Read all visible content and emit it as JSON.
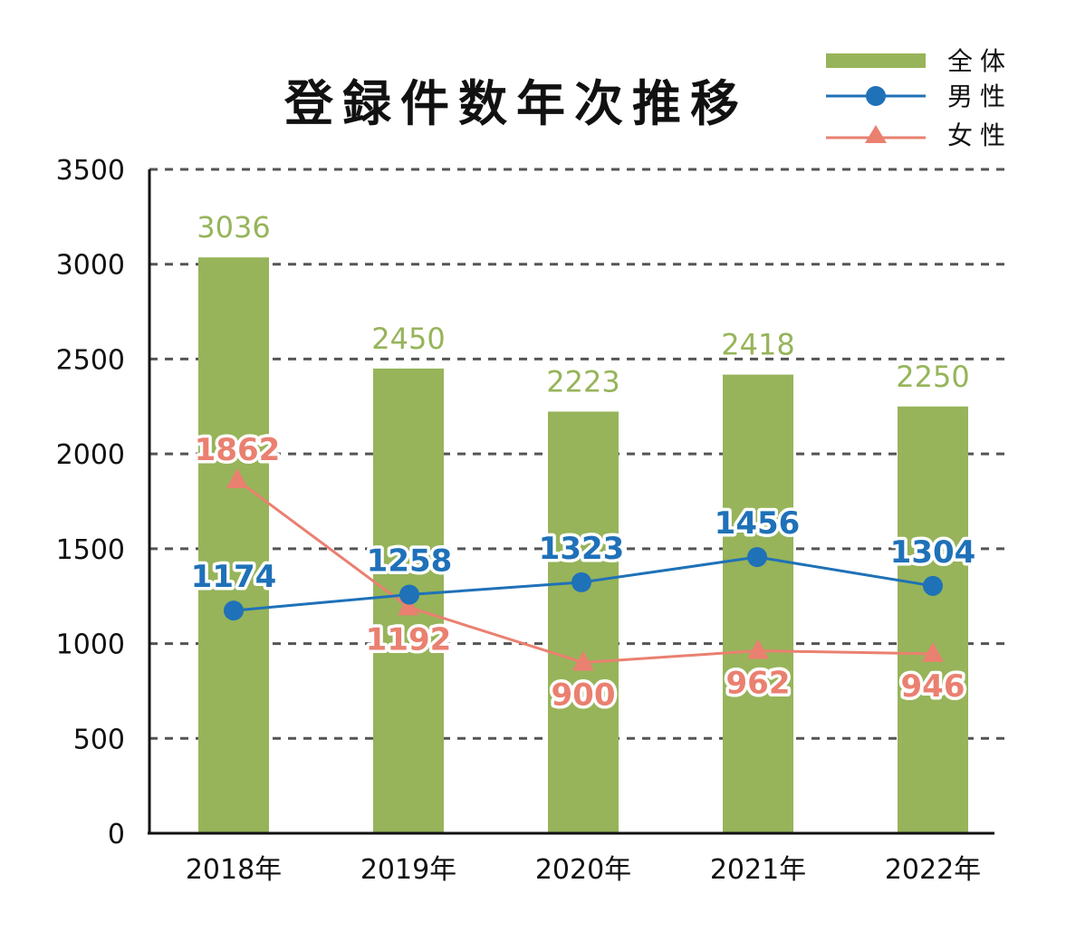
{
  "chart_data": {
    "type": "bar",
    "title": "登録件数年次推移",
    "categories": [
      "2018年",
      "2019年",
      "2020年",
      "2021年",
      "2022年"
    ],
    "ylim": [
      0,
      3500
    ],
    "yticks": [
      0,
      500,
      1000,
      1500,
      2000,
      2500,
      3000,
      3500
    ],
    "grid": true,
    "legend_position": "top-right",
    "series": [
      {
        "name": "全体",
        "type": "bar",
        "color": "#97b45a",
        "values": [
          3036,
          2450,
          2223,
          2418,
          2250
        ]
      },
      {
        "name": "男性",
        "type": "line",
        "marker": "circle",
        "color": "#1f71b8",
        "values": [
          1174,
          1258,
          1323,
          1456,
          1304
        ]
      },
      {
        "name": "女性",
        "type": "line",
        "marker": "triangle",
        "color": "#ea8070",
        "values": [
          1862,
          1192,
          900,
          962,
          946
        ]
      }
    ]
  }
}
